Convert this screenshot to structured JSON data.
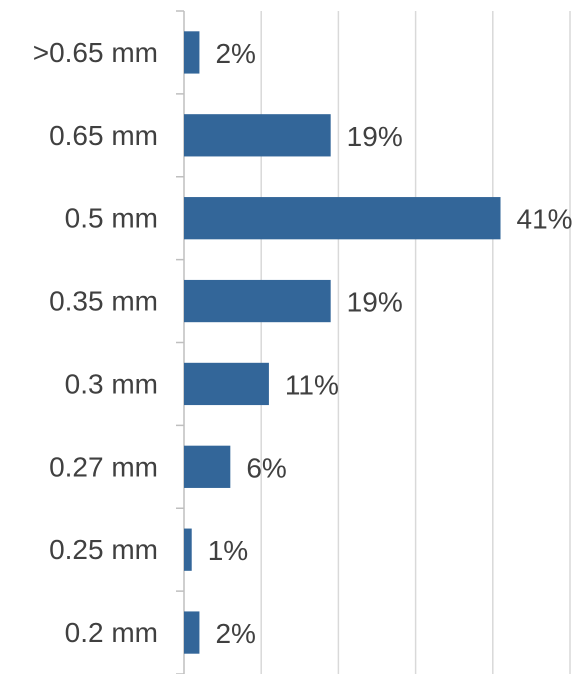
{
  "chart_data": {
    "type": "bar",
    "orientation": "horizontal",
    "categories": [
      ">0.65 mm",
      "0.65 mm",
      "0.5 mm",
      "0.35 mm",
      "0.3 mm",
      "0.27 mm",
      "0.25 mm",
      "0.2 mm"
    ],
    "values": [
      2,
      19,
      41,
      19,
      11,
      6,
      1,
      2
    ],
    "value_labels": [
      "2%",
      "19%",
      "41%",
      "19%",
      "11%",
      "6%",
      "1%",
      "2%"
    ],
    "title": "",
    "xlabel": "",
    "ylabel": "",
    "xlim": [
      0,
      50
    ],
    "grid": true,
    "legend": "none",
    "colors": {
      "bar": "#336699",
      "grid": "#d9d9d9",
      "axis": "#bfbfbf",
      "text": "#404040"
    }
  }
}
